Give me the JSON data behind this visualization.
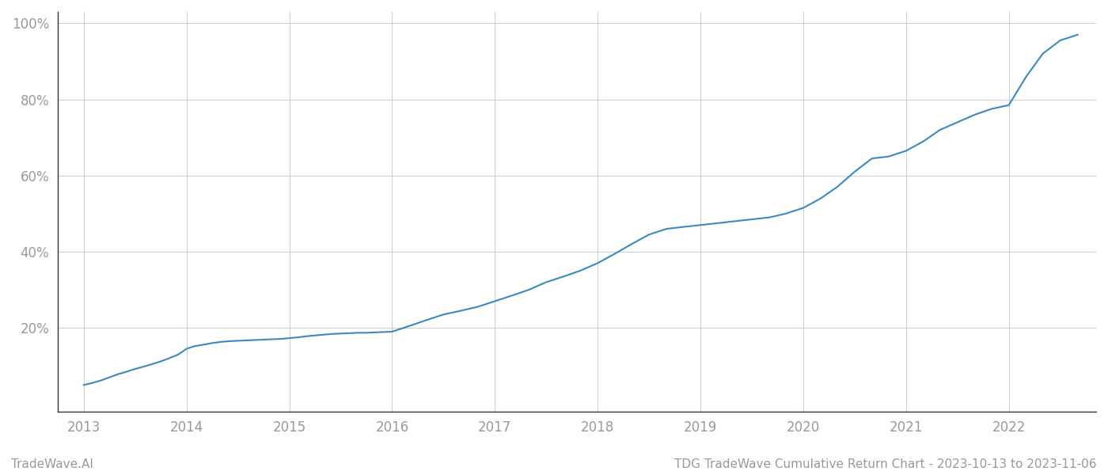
{
  "title": "",
  "footer_left": "TradeWave.AI",
  "footer_right": "TDG TradeWave Cumulative Return Chart - 2023-10-13 to 2023-11-06",
  "line_color": "#3a8abf",
  "background_color": "#ffffff",
  "grid_color": "#cccccc",
  "x_values": [
    2013.0,
    2013.08,
    2013.17,
    2013.25,
    2013.33,
    2013.42,
    2013.5,
    2013.58,
    2013.67,
    2013.75,
    2013.83,
    2013.92,
    2014.0,
    2014.08,
    2014.17,
    2014.25,
    2014.33,
    2014.42,
    2014.5,
    2014.58,
    2014.67,
    2014.75,
    2014.83,
    2014.92,
    2015.0,
    2015.08,
    2015.17,
    2015.25,
    2015.33,
    2015.42,
    2015.5,
    2015.58,
    2015.67,
    2015.75,
    2015.83,
    2015.92,
    2016.0,
    2016.17,
    2016.33,
    2016.5,
    2016.67,
    2016.83,
    2017.0,
    2017.17,
    2017.33,
    2017.5,
    2017.67,
    2017.83,
    2018.0,
    2018.17,
    2018.33,
    2018.5,
    2018.67,
    2018.83,
    2019.0,
    2019.17,
    2019.33,
    2019.5,
    2019.67,
    2019.83,
    2020.0,
    2020.17,
    2020.33,
    2020.5,
    2020.67,
    2020.83,
    2021.0,
    2021.17,
    2021.33,
    2021.5,
    2021.67,
    2021.83,
    2022.0,
    2022.17,
    2022.33,
    2022.5,
    2022.67
  ],
  "y_values": [
    5.0,
    5.5,
    6.2,
    7.0,
    7.8,
    8.5,
    9.2,
    9.8,
    10.5,
    11.2,
    12.0,
    13.0,
    14.5,
    15.2,
    15.6,
    16.0,
    16.3,
    16.5,
    16.6,
    16.7,
    16.8,
    16.9,
    17.0,
    17.1,
    17.3,
    17.5,
    17.8,
    18.0,
    18.2,
    18.4,
    18.5,
    18.6,
    18.7,
    18.7,
    18.8,
    18.9,
    19.0,
    20.5,
    22.0,
    23.5,
    24.5,
    25.5,
    27.0,
    28.5,
    30.0,
    32.0,
    33.5,
    35.0,
    37.0,
    39.5,
    42.0,
    44.5,
    46.0,
    46.5,
    47.0,
    47.5,
    48.0,
    48.5,
    49.0,
    50.0,
    51.5,
    54.0,
    57.0,
    61.0,
    64.5,
    65.0,
    66.5,
    69.0,
    72.0,
    74.0,
    76.0,
    77.5,
    78.5,
    86.0,
    92.0,
    95.5,
    97.0
  ],
  "xlim": [
    2012.75,
    2022.85
  ],
  "ylim": [
    -2,
    103
  ],
  "yticks": [
    20,
    40,
    60,
    80,
    100
  ],
  "ytick_labels": [
    "20%",
    "40%",
    "60%",
    "80%",
    "100%"
  ],
  "xticks": [
    2013,
    2014,
    2015,
    2016,
    2017,
    2018,
    2019,
    2020,
    2021,
    2022
  ],
  "tick_color": "#999999",
  "spine_color": "#333333",
  "line_width": 1.5,
  "footer_fontsize": 11,
  "tick_fontsize": 12
}
